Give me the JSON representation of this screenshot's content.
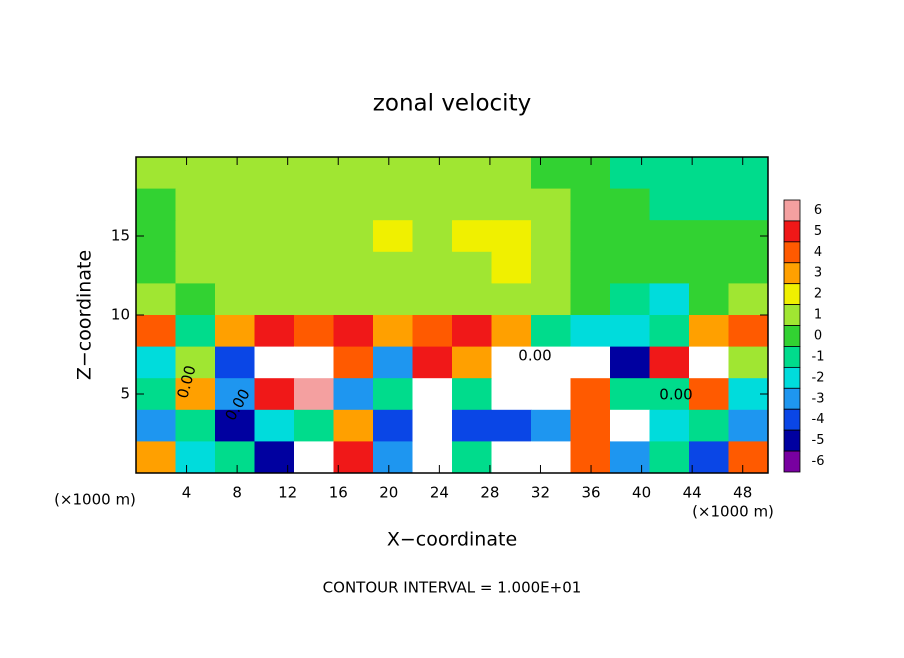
{
  "chart_data": {
    "type": "contour",
    "title": "zonal velocity",
    "x_label": "X−coordinate",
    "y_label": "Z−coordinate",
    "x_unit": "(×1000 m)",
    "x_unit_right": "(×1000 m)",
    "footer": "CONTOUR INTERVAL = 1.000E+01",
    "contour_labels": [
      "0.00",
      "0.00",
      "0.00",
      "0.00"
    ],
    "xlim": [
      0,
      50
    ],
    "ylim": [
      0,
      20
    ],
    "xticks": [
      4,
      8,
      12,
      16,
      20,
      24,
      28,
      32,
      36,
      40,
      44,
      48
    ],
    "yticks": [
      5,
      10,
      15
    ],
    "x": [
      1.5625,
      4.6875,
      7.8125,
      10.9375,
      14.0625,
      17.1875,
      20.3125,
      23.4375,
      26.5625,
      29.6875,
      32.8125,
      35.9375,
      39.0625,
      42.1875,
      45.3125,
      48.4375
    ],
    "y": [
      19,
      17,
      15,
      13,
      11,
      9,
      7,
      5,
      3,
      1
    ],
    "values": [
      [
        1,
        1,
        1,
        1,
        1,
        1,
        1,
        1,
        1,
        1,
        0,
        0,
        -1,
        -1,
        -1,
        -1
      ],
      [
        0,
        1,
        1,
        1,
        1,
        1,
        1,
        1,
        1,
        1,
        1,
        0,
        0,
        -1,
        -1,
        -1
      ],
      [
        0,
        1,
        1,
        1,
        1,
        1,
        2,
        1,
        2,
        2,
        1,
        0,
        0,
        0,
        0,
        0
      ],
      [
        0,
        1,
        1,
        1,
        1,
        1,
        1,
        1,
        1,
        2,
        1,
        0,
        0,
        0,
        0,
        0
      ],
      [
        1,
        0,
        1,
        1,
        1,
        1,
        1,
        1,
        1,
        1,
        1,
        0,
        -1,
        -2,
        0,
        1
      ],
      [
        4,
        -1,
        3,
        5,
        4,
        5,
        3,
        4,
        5,
        3,
        -1,
        -2,
        -2,
        -1,
        3,
        4
      ],
      [
        -2,
        1,
        -4,
        7,
        7,
        4,
        -3,
        5,
        3,
        7,
        7,
        7,
        -5,
        5,
        7,
        1
      ],
      [
        -1,
        3,
        -3,
        5,
        6,
        -3,
        -1,
        7,
        -1,
        7,
        7,
        4,
        -1,
        -1,
        4,
        -2
      ],
      [
        -3,
        -1,
        -5,
        -2,
        -1,
        3,
        -4,
        7,
        -4,
        -4,
        -3,
        4,
        7,
        -2,
        -1,
        -3
      ],
      [
        3,
        -2,
        -1,
        -5,
        7,
        5,
        -3,
        7,
        -1,
        7,
        7,
        4,
        -3,
        -1,
        -4,
        4
      ]
    ],
    "colorbar": {
      "levels": [
        6,
        5,
        4,
        3,
        2,
        1,
        0,
        -1,
        -2,
        -3,
        -4,
        -5,
        -6
      ],
      "colors": [
        "#f4a0a0",
        "#f01818",
        "#ff5a00",
        "#ffa000",
        "#f0f000",
        "#a0e632",
        "#32d232",
        "#00dc8c",
        "#00dcdc",
        "#1e96f0",
        "#0a46e6",
        "#0000a0",
        "#7800a0"
      ]
    }
  }
}
